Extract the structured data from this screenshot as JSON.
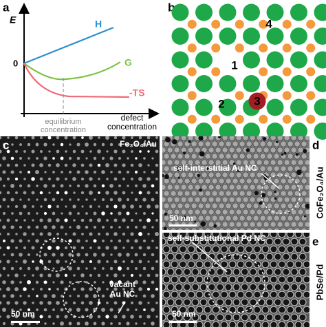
{
  "panel_a": {
    "label": "a",
    "y_axis": "E",
    "origin": "0",
    "curves": [
      "H",
      "G",
      "-TS"
    ],
    "equilibrium": [
      "equilibrium",
      "concentration"
    ],
    "x_axis": [
      "defect",
      "concentration"
    ]
  },
  "panel_b": {
    "label": "b",
    "sites": [
      "1",
      "2",
      "3",
      "4"
    ]
  },
  "panel_c": {
    "label": "c",
    "material": "Fe₃O₄/Au",
    "annotation": [
      "vacant",
      "Au NC"
    ],
    "scale": "50 nm"
  },
  "panel_d": {
    "label": "d",
    "material": "CoFe₂O₄/Au",
    "annotation": "self-interstitial Au NC",
    "scale": "50 nm"
  },
  "panel_e": {
    "label": "e",
    "material": "PbSe/Pd",
    "annotation": "self-substitutional Pd NC",
    "scale": "50 nm"
  }
}
